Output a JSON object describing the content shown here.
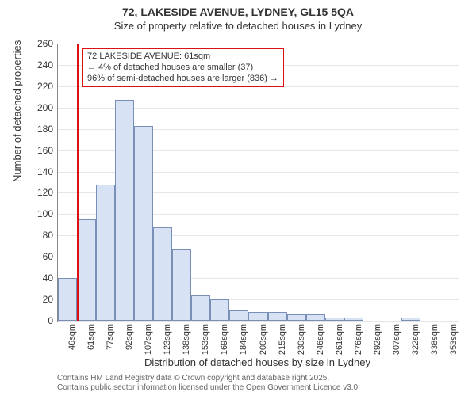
{
  "chart": {
    "type": "histogram",
    "title": "72, LAKESIDE AVENUE, LYDNEY, GL15 5QA",
    "subtitle": "Size of property relative to detached houses in Lydney",
    "x_axis_label": "Distribution of detached houses by size in Lydney",
    "y_axis_label": "Number of detached properties",
    "background_color": "#ffffff",
    "grid_color": "#e6e6e6",
    "axis_color": "#888888",
    "bar_fill": "#d7e2f4",
    "bar_border": "#7a8fb8",
    "marker_color": "#dd1111",
    "ylim": [
      0,
      260
    ],
    "ytick_step": 20,
    "y_ticks": [
      0,
      20,
      40,
      60,
      80,
      100,
      120,
      140,
      160,
      180,
      200,
      220,
      240,
      260
    ],
    "x_categories": [
      "46sqm",
      "61sqm",
      "77sqm",
      "92sqm",
      "107sqm",
      "123sqm",
      "138sqm",
      "153sqm",
      "169sqm",
      "184sqm",
      "200sqm",
      "215sqm",
      "230sqm",
      "246sqm",
      "261sqm",
      "276sqm",
      "292sqm",
      "307sqm",
      "322sqm",
      "338sqm",
      "353sqm"
    ],
    "values": [
      40,
      95,
      128,
      207,
      183,
      88,
      67,
      24,
      20,
      10,
      8,
      8,
      6,
      6,
      3,
      3,
      0,
      0,
      3,
      0,
      0
    ],
    "bar_width_ratio": 1.0,
    "marker": {
      "x_value_sqm": 61,
      "annotation_lines": [
        "72 LAKESIDE AVENUE: 61sqm",
        "← 4% of detached houses are smaller (37)",
        "96% of semi-detached houses are larger (836) →"
      ]
    },
    "title_fontsize": 14,
    "subtitle_fontsize": 13,
    "axis_label_fontsize": 13,
    "tick_fontsize": 12
  },
  "attribution": {
    "line1": "Contains HM Land Registry data © Crown copyright and database right 2025.",
    "line2": "Contains public sector information licensed under the Open Government Licence v3.0."
  }
}
